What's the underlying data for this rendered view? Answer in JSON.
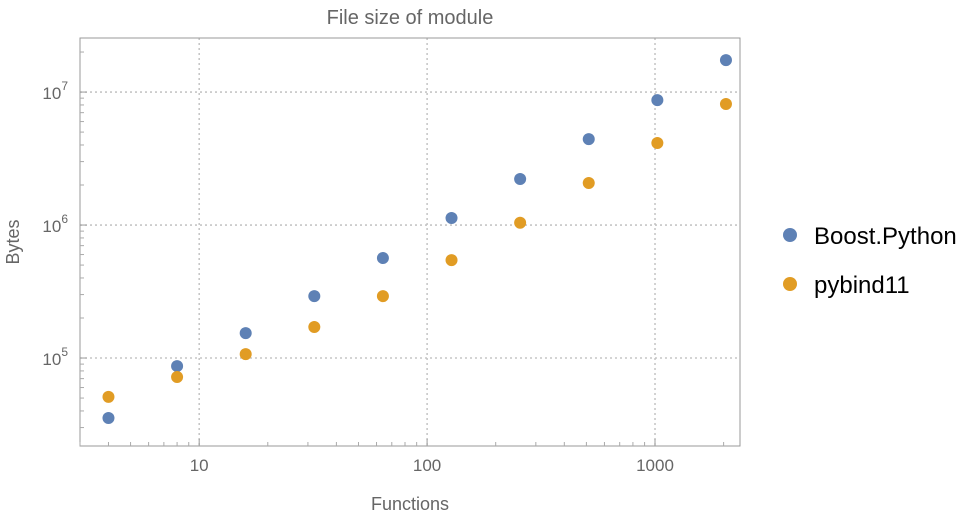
{
  "chart_data": {
    "type": "scatter",
    "title": "File size of module",
    "xlabel": "Functions",
    "ylabel": "Bytes",
    "xscale": "log",
    "yscale": "log",
    "xlim": [
      3.0,
      2360
    ],
    "ylim": [
      21800,
      25500000
    ],
    "grid": true,
    "legend_position": "right",
    "x_ticks": [
      {
        "value": 10,
        "label": "10"
      },
      {
        "value": 100,
        "label": "100"
      },
      {
        "value": 1000,
        "label": "1000"
      }
    ],
    "y_ticks": [
      {
        "value": 100000,
        "base": "10",
        "exp": "5"
      },
      {
        "value": 1000000,
        "base": "10",
        "exp": "6"
      },
      {
        "value": 10000000,
        "base": "10",
        "exp": "7"
      }
    ],
    "x": [
      4,
      8,
      16,
      32,
      64,
      128,
      256,
      512,
      1024,
      2048
    ],
    "series": [
      {
        "name": "Boost.Python",
        "color": "#5E81B5",
        "values": [
          35400,
          87000,
          154000,
          292000,
          565000,
          1130000,
          2220000,
          4430000,
          8700000,
          17400000
        ]
      },
      {
        "name": "pybind11",
        "color": "#E19C24",
        "values": [
          51000,
          72000,
          107000,
          171000,
          292000,
          545000,
          1040000,
          2070000,
          4140000,
          8130000
        ]
      }
    ]
  }
}
